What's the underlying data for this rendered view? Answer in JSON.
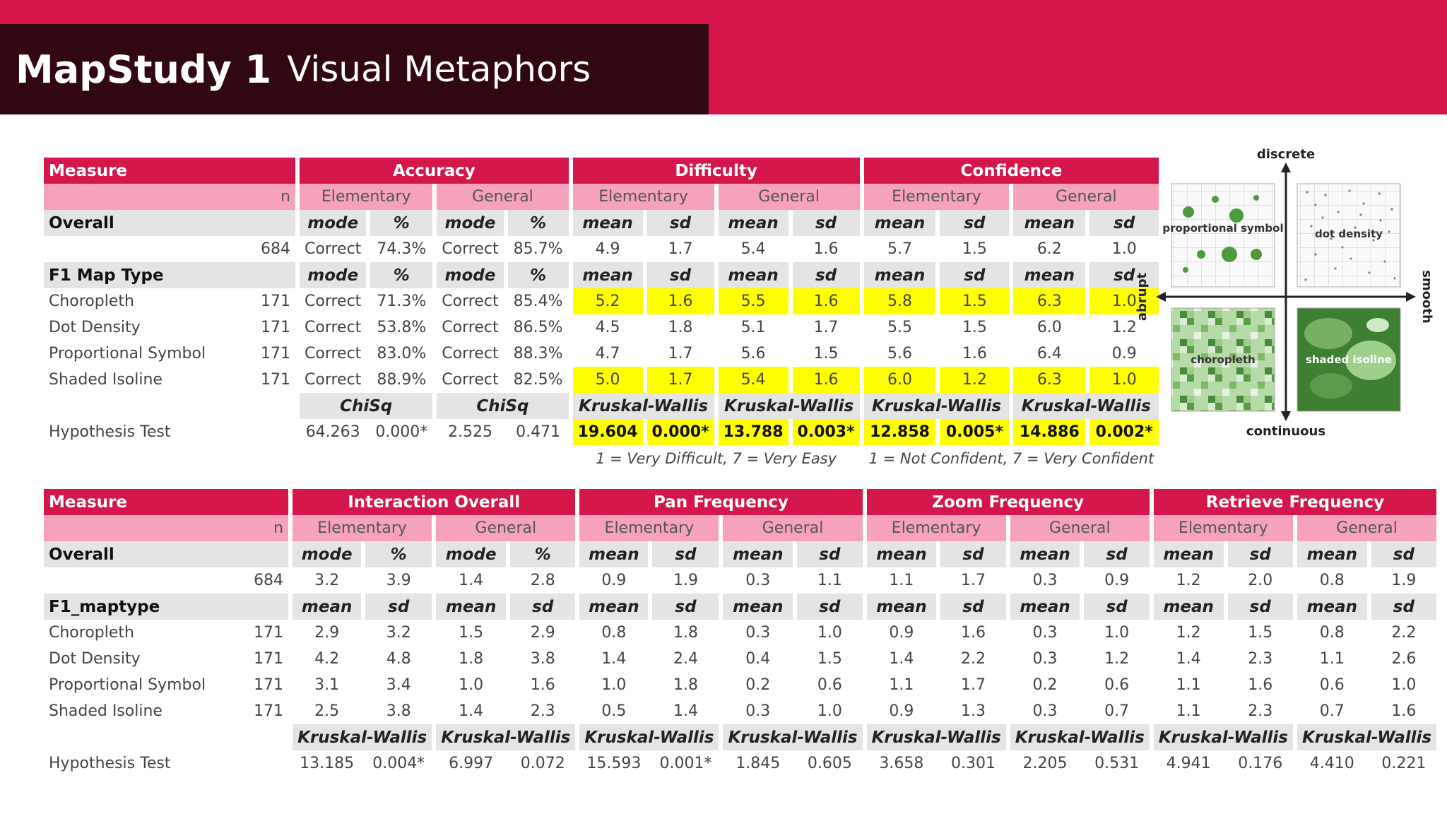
{
  "title": {
    "bold": "MapStudy 1",
    "light": "Visual Metaphors"
  },
  "table1": {
    "groups": [
      "Measure",
      "Accuracy",
      "Difficulty",
      "Confidence"
    ],
    "subheaders": [
      "n",
      "Elementary",
      "General",
      "Elementary",
      "General",
      "Elementary",
      "General"
    ],
    "overall": {
      "label": "Overall",
      "cols": [
        "mode",
        "%",
        "mode",
        "%",
        "mean",
        "sd",
        "mean",
        "sd",
        "mean",
        "sd",
        "mean",
        "sd"
      ],
      "n": "684",
      "values": [
        "Correct",
        "74.3%",
        "Correct",
        "85.7%",
        "4.9",
        "1.7",
        "5.4",
        "1.6",
        "5.7",
        "1.5",
        "6.2",
        "1.0"
      ]
    },
    "f1": {
      "label": "F1 Map Type",
      "cols": [
        "mode",
        "%",
        "mode",
        "%",
        "mean",
        "sd",
        "mean",
        "sd",
        "mean",
        "sd",
        "mean",
        "sd"
      ],
      "rows": [
        {
          "label": "Choropleth",
          "n": "171",
          "values": [
            "Correct",
            "71.3%",
            "Correct",
            "85.4%",
            "5.2",
            "1.6",
            "5.5",
            "1.6",
            "5.8",
            "1.5",
            "6.3",
            "1.0"
          ]
        },
        {
          "label": "Dot Density",
          "n": "171",
          "values": [
            "Correct",
            "53.8%",
            "Correct",
            "86.5%",
            "4.5",
            "1.8",
            "5.1",
            "1.7",
            "5.5",
            "1.5",
            "6.0",
            "1.2"
          ]
        },
        {
          "label": "Proportional Symbol",
          "n": "171",
          "values": [
            "Correct",
            "83.0%",
            "Correct",
            "88.3%",
            "4.7",
            "1.7",
            "5.6",
            "1.5",
            "5.6",
            "1.6",
            "6.4",
            "0.9"
          ]
        },
        {
          "label": "Shaded Isoline",
          "n": "171",
          "values": [
            "Correct",
            "88.9%",
            "Correct",
            "82.5%",
            "5.0",
            "1.7",
            "5.4",
            "1.6",
            "6.0",
            "1.2",
            "6.3",
            "1.0"
          ]
        }
      ]
    },
    "tests": [
      "ChiSq",
      "ChiSq",
      "Kruskal-Wallis",
      "Kruskal-Wallis",
      "Kruskal-Wallis",
      "Kruskal-Wallis"
    ],
    "hypothesis": {
      "label": "Hypothesis Test",
      "values": [
        "64.263",
        "0.000*",
        "2.525",
        "0.471",
        "19.604",
        "0.000*",
        "13.788",
        "0.003*",
        "12.858",
        "0.005*",
        "14.886",
        "0.002*"
      ]
    },
    "notes": {
      "difficulty": "1 = Very Difficult, 7 = Very Easy",
      "confidence": "1 = Not Confident, 7 = Very Confident"
    }
  },
  "table2": {
    "groups": [
      "Measure",
      "Interaction Overall",
      "Pan Frequency",
      "Zoom Frequency",
      "Retrieve Frequency"
    ],
    "subheaders": [
      "n",
      "Elementary",
      "General",
      "Elementary",
      "General",
      "Elementary",
      "General",
      "Elementary",
      "General"
    ],
    "overall": {
      "label": "Overall",
      "cols": [
        "mode",
        "%",
        "mode",
        "%",
        "mean",
        "sd",
        "mean",
        "sd",
        "mean",
        "sd",
        "mean",
        "sd",
        "mean",
        "sd",
        "mean",
        "sd"
      ],
      "n": "684",
      "values": [
        "3.2",
        "3.9",
        "1.4",
        "2.8",
        "0.9",
        "1.9",
        "0.3",
        "1.1",
        "1.1",
        "1.7",
        "0.3",
        "0.9",
        "1.2",
        "2.0",
        "0.8",
        "1.9"
      ]
    },
    "f1": {
      "label": "F1_maptype",
      "cols": [
        "mean",
        "sd",
        "mean",
        "sd",
        "mean",
        "sd",
        "mean",
        "sd",
        "mean",
        "sd",
        "mean",
        "sd",
        "mean",
        "sd",
        "mean",
        "sd"
      ],
      "rows": [
        {
          "label": "Choropleth",
          "n": "171",
          "values": [
            "2.9",
            "3.2",
            "1.5",
            "2.9",
            "0.8",
            "1.8",
            "0.3",
            "1.0",
            "0.9",
            "1.6",
            "0.3",
            "1.0",
            "1.2",
            "1.5",
            "0.8",
            "2.2"
          ]
        },
        {
          "label": "Dot Density",
          "n": "171",
          "values": [
            "4.2",
            "4.8",
            "1.8",
            "3.8",
            "1.4",
            "2.4",
            "0.4",
            "1.5",
            "1.4",
            "2.2",
            "0.3",
            "1.2",
            "1.4",
            "2.3",
            "1.1",
            "2.6"
          ]
        },
        {
          "label": "Proportional Symbol",
          "n": "171",
          "values": [
            "3.1",
            "3.4",
            "1.0",
            "1.6",
            "1.0",
            "1.8",
            "0.2",
            "0.6",
            "1.1",
            "1.7",
            "0.2",
            "0.6",
            "1.1",
            "1.6",
            "0.6",
            "1.0"
          ]
        },
        {
          "label": "Shaded Isoline",
          "n": "171",
          "values": [
            "2.5",
            "3.8",
            "1.4",
            "2.3",
            "0.5",
            "1.4",
            "0.3",
            "1.0",
            "0.9",
            "1.3",
            "0.3",
            "0.7",
            "1.1",
            "2.3",
            "0.7",
            "1.6"
          ]
        }
      ]
    },
    "tests": [
      "Kruskal-Wallis",
      "Kruskal-Wallis",
      "Kruskal-Wallis",
      "Kruskal-Wallis",
      "Kruskal-Wallis",
      "Kruskal-Wallis",
      "Kruskal-Wallis",
      "Kruskal-Wallis"
    ],
    "hypothesis": {
      "label": "Hypothesis Test",
      "values": [
        "13.185",
        "0.004*",
        "6.997",
        "0.072",
        "15.593",
        "0.001*",
        "1.845",
        "0.605",
        "3.658",
        "0.301",
        "2.205",
        "0.531",
        "4.941",
        "0.176",
        "4.410",
        "0.221"
      ]
    }
  },
  "diagram": {
    "top": "discrete",
    "bottom": "continuous",
    "left": "abrupt",
    "right": "smooth",
    "maps": [
      "proportional symbol",
      "dot density",
      "choropleth",
      "shaded isoline"
    ]
  },
  "colors": {
    "accent": "#d4164a",
    "dark": "#310712",
    "subheader": "#f6a2ba",
    "highlight": "#ffff00",
    "gray": "#e4e4e4"
  }
}
